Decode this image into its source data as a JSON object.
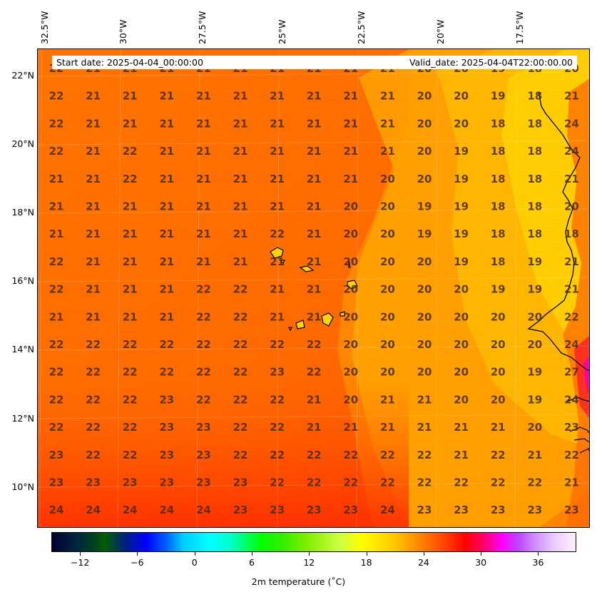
{
  "header": {
    "start_date": "Start date: 2025-04-04_00:00:00",
    "valid_date": "Valid_date: 2025-04-04T22:00:00.00"
  },
  "lon_labels": [
    "32.5°W",
    "30°W",
    "27.5°W",
    "25°W",
    "22.5°W",
    "20°W",
    "17.5°W"
  ],
  "lat_labels": [
    "22°N",
    "20°N",
    "18°N",
    "16°N",
    "14°N",
    "12°N",
    "10°N"
  ],
  "grid_values": [
    [
      "22",
      "21",
      "21",
      "21",
      "21",
      "21",
      "21",
      "21",
      "21",
      "21",
      "20",
      "20",
      "19",
      "18",
      "20"
    ],
    [
      "22",
      "21",
      "21",
      "21",
      "21",
      "21",
      "21",
      "21",
      "21",
      "21",
      "20",
      "20",
      "19",
      "18",
      "21"
    ],
    [
      "22",
      "21",
      "21",
      "21",
      "21",
      "21",
      "21",
      "21",
      "21",
      "21",
      "20",
      "20",
      "18",
      "18",
      "24"
    ],
    [
      "22",
      "21",
      "22",
      "21",
      "21",
      "21",
      "21",
      "21",
      "21",
      "21",
      "20",
      "19",
      "18",
      "18",
      "24"
    ],
    [
      "21",
      "21",
      "22",
      "21",
      "21",
      "21",
      "21",
      "21",
      "21",
      "20",
      "20",
      "19",
      "18",
      "18",
      "21"
    ],
    [
      "21",
      "21",
      "21",
      "21",
      "21",
      "21",
      "21",
      "21",
      "20",
      "20",
      "19",
      "19",
      "18",
      "18",
      "20"
    ],
    [
      "21",
      "21",
      "21",
      "21",
      "21",
      "21",
      "22",
      "21",
      "20",
      "20",
      "19",
      "19",
      "18",
      "18",
      "18"
    ],
    [
      "22",
      "21",
      "21",
      "21",
      "21",
      "21",
      "21",
      "21",
      "20",
      "20",
      "20",
      "19",
      "18",
      "19",
      "21"
    ],
    [
      "22",
      "21",
      "21",
      "21",
      "22",
      "22",
      "21",
      "21",
      "20",
      "20",
      "20",
      "20",
      "19",
      "19",
      "21"
    ],
    [
      "21",
      "21",
      "21",
      "21",
      "22",
      "22",
      "21",
      "21",
      "20",
      "20",
      "20",
      "20",
      "20",
      "20",
      "22"
    ],
    [
      "22",
      "22",
      "22",
      "22",
      "22",
      "22",
      "22",
      "22",
      "20",
      "20",
      "20",
      "20",
      "20",
      "20",
      "24"
    ],
    [
      "22",
      "22",
      "22",
      "22",
      "22",
      "22",
      "23",
      "22",
      "20",
      "20",
      "20",
      "20",
      "20",
      "19",
      "27"
    ],
    [
      "22",
      "22",
      "22",
      "23",
      "22",
      "22",
      "22",
      "21",
      "20",
      "21",
      "21",
      "20",
      "20",
      "19",
      "24"
    ],
    [
      "22",
      "22",
      "22",
      "23",
      "23",
      "22",
      "22",
      "21",
      "21",
      "21",
      "21",
      "21",
      "21",
      "20",
      "23"
    ],
    [
      "23",
      "22",
      "22",
      "23",
      "23",
      "22",
      "22",
      "22",
      "22",
      "22",
      "22",
      "21",
      "22",
      "21",
      "22"
    ],
    [
      "23",
      "23",
      "23",
      "23",
      "23",
      "23",
      "22",
      "22",
      "22",
      "22",
      "22",
      "22",
      "22",
      "22",
      "21"
    ],
    [
      "24",
      "24",
      "24",
      "24",
      "24",
      "23",
      "23",
      "23",
      "23",
      "24",
      "23",
      "23",
      "23",
      "23",
      "23"
    ]
  ],
  "colorbar": {
    "ticks": [
      "−12",
      "−6",
      "0",
      "6",
      "12",
      "18",
      "24",
      "30",
      "36"
    ],
    "title": "2m temperature ($^\\circ$C)",
    "title_display": "2m temperature (˚C)",
    "range": [
      -15,
      40
    ]
  },
  "colors": {
    "warm_background": "#ff6a00",
    "cool_patch": "#ffc200",
    "label_text": "#4a2a10"
  }
}
